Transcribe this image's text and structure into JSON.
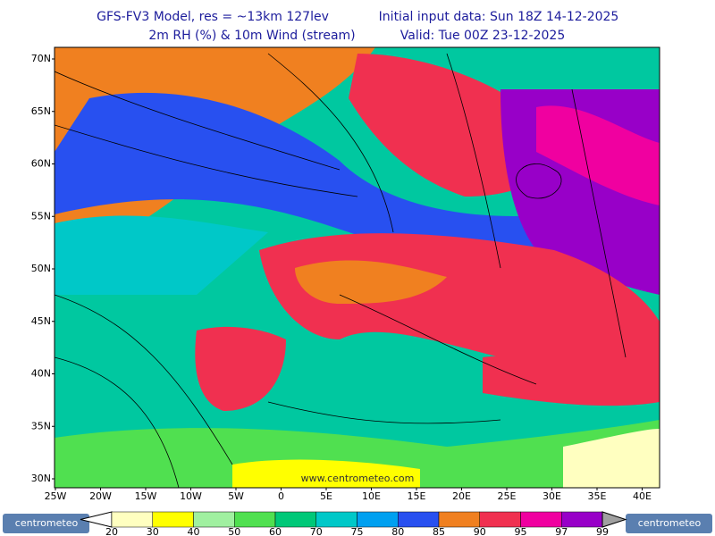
{
  "header": {
    "model": "GFS-FV3 Model, res = ~13km 127lev",
    "init": "Initial input data: Sun 18Z 14-12-2025",
    "field": "2m RH (%) & 10m Wind (stream)",
    "valid": "Valid: Tue 00Z 23-12-2025"
  },
  "map": {
    "lat_labels": [
      "70N",
      "65N",
      "60N",
      "55N",
      "50N",
      "45N",
      "40N",
      "35N",
      "30N"
    ],
    "lon_labels": [
      "25W",
      "20W",
      "15W",
      "10W",
      "5W",
      "0",
      "5E",
      "10E",
      "15E",
      "20E",
      "25E",
      "30E",
      "35E",
      "40E"
    ],
    "watermark": "www.centrometeo.com"
  },
  "colorbar": {
    "ticks": [
      20,
      30,
      40,
      50,
      60,
      70,
      75,
      80,
      85,
      90,
      95,
      97,
      99
    ],
    "colors": [
      "#ffffc0",
      "#ffff00",
      "#a0f0a0",
      "#50e050",
      "#00c878",
      "#00c8c8",
      "#00a0f0",
      "#2850f0",
      "#f08020",
      "#f03050",
      "#f000a0",
      "#9800c8"
    ]
  },
  "logos": {
    "left": "centrometeo",
    "right": "centrometeo"
  }
}
